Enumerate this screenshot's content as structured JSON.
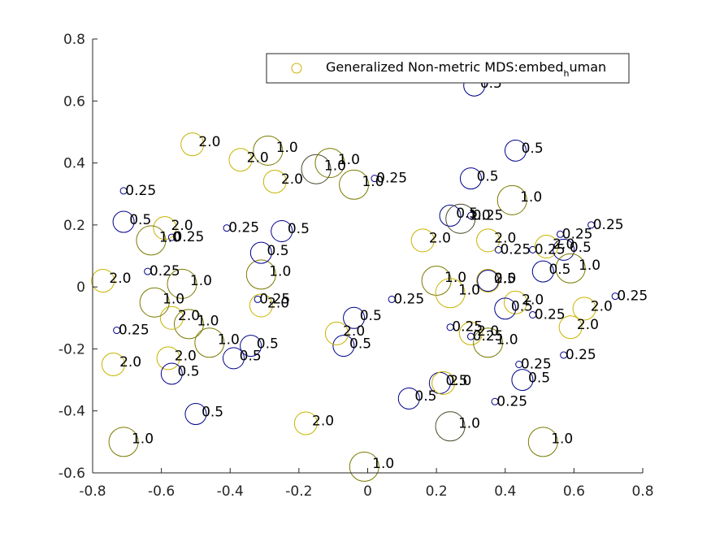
{
  "chart_data": {
    "type": "scatter",
    "xlim": [
      -0.8,
      0.8
    ],
    "ylim": [
      -0.6,
      0.8
    ],
    "xticks": [
      -0.8,
      -0.6,
      -0.4,
      -0.2,
      0,
      0.2,
      0.4,
      0.6,
      0.8
    ],
    "yticks": [
      -0.6,
      -0.4,
      -0.2,
      0,
      0.2,
      0.4,
      0.6,
      0.8
    ],
    "grid": false,
    "legend": {
      "placement": "top-right",
      "label_main": "Generalized Non-metric MDS:embed",
      "label_sub": "h",
      "label_tail": "uman"
    },
    "colors": {
      "navy": "#00008b",
      "olive": "#7a7a00",
      "dark": "#4a4a2a",
      "gold": "#c8b400"
    },
    "points": [
      {
        "x": 0.31,
        "y": 0.65,
        "label": "0.5",
        "r": 0.5,
        "c": "navy"
      },
      {
        "x": 0.43,
        "y": 0.44,
        "label": "0.5",
        "r": 0.5,
        "c": "navy"
      },
      {
        "x": 0.3,
        "y": 0.35,
        "label": "0.5",
        "r": 0.5,
        "c": "navy"
      },
      {
        "x": 0.42,
        "y": 0.28,
        "label": "1.0",
        "r": 1.0,
        "c": "olive"
      },
      {
        "x": 0.24,
        "y": 0.23,
        "label": "0.5",
        "r": 0.5,
        "c": "navy"
      },
      {
        "x": 0.27,
        "y": 0.22,
        "label": "1.0",
        "r": 1.0,
        "c": "dark"
      },
      {
        "x": 0.3,
        "y": 0.23,
        "label": "0.25",
        "r": 0.25,
        "c": "navy"
      },
      {
        "x": 0.16,
        "y": 0.15,
        "label": "2.0",
        "r": 2.0,
        "c": "gold"
      },
      {
        "x": 0.35,
        "y": 0.15,
        "label": "2.0",
        "r": 2.0,
        "c": "gold"
      },
      {
        "x": 0.38,
        "y": 0.12,
        "label": "0.25",
        "r": 0.25,
        "c": "navy"
      },
      {
        "x": 0.48,
        "y": 0.12,
        "label": "0.25",
        "r": 0.25,
        "c": "navy"
      },
      {
        "x": 0.52,
        "y": 0.13,
        "label": "2.0",
        "r": 2.0,
        "c": "gold"
      },
      {
        "x": 0.56,
        "y": 0.17,
        "label": "0.25",
        "r": 0.25,
        "c": "navy"
      },
      {
        "x": 0.57,
        "y": 0.12,
        "label": "0.5",
        "r": 0.5,
        "c": "navy"
      },
      {
        "x": 0.65,
        "y": 0.2,
        "label": "0.25",
        "r": 0.25,
        "c": "navy"
      },
      {
        "x": 0.59,
        "y": 0.06,
        "label": "1.0",
        "r": 1.0,
        "c": "olive"
      },
      {
        "x": 0.51,
        "y": 0.05,
        "label": "0.5",
        "r": 0.5,
        "c": "navy"
      },
      {
        "x": 0.35,
        "y": 0.02,
        "label": "2.0",
        "r": 2.0,
        "c": "gold"
      },
      {
        "x": 0.35,
        "y": 0.02,
        "label": "0.5",
        "r": 0.5,
        "c": "navy"
      },
      {
        "x": 0.2,
        "y": 0.02,
        "label": "1.0",
        "r": 1.0,
        "c": "olive"
      },
      {
        "x": 0.24,
        "y": -0.02,
        "label": "1.0",
        "r": 1.0,
        "c": "gold"
      },
      {
        "x": 0.07,
        "y": -0.04,
        "label": "0.25",
        "r": 0.25,
        "c": "navy"
      },
      {
        "x": 0.72,
        "y": -0.03,
        "label": "0.25",
        "r": 0.25,
        "c": "navy"
      },
      {
        "x": 0.43,
        "y": -0.05,
        "label": "2.0",
        "r": 2.0,
        "c": "gold"
      },
      {
        "x": 0.4,
        "y": -0.07,
        "label": "0.5",
        "r": 0.5,
        "c": "navy"
      },
      {
        "x": 0.48,
        "y": -0.09,
        "label": "0.25",
        "r": 0.25,
        "c": "navy"
      },
      {
        "x": 0.63,
        "y": -0.07,
        "label": "2.0",
        "r": 2.0,
        "c": "gold"
      },
      {
        "x": 0.59,
        "y": -0.13,
        "label": "2.0",
        "r": 2.0,
        "c": "gold"
      },
      {
        "x": 0.57,
        "y": -0.22,
        "label": "0.25",
        "r": 0.25,
        "c": "navy"
      },
      {
        "x": 0.24,
        "y": -0.13,
        "label": "0.25",
        "r": 0.25,
        "c": "navy"
      },
      {
        "x": 0.3,
        "y": -0.15,
        "label": "2.0",
        "r": 2.0,
        "c": "gold"
      },
      {
        "x": 0.3,
        "y": -0.16,
        "label": "0.25",
        "r": 0.25,
        "c": "navy"
      },
      {
        "x": 0.35,
        "y": -0.18,
        "label": "1.0",
        "r": 1.0,
        "c": "olive"
      },
      {
        "x": 0.44,
        "y": -0.25,
        "label": "0.25",
        "r": 0.25,
        "c": "navy"
      },
      {
        "x": 0.45,
        "y": -0.3,
        "label": "0.5",
        "r": 0.5,
        "c": "navy"
      },
      {
        "x": 0.21,
        "y": -0.31,
        "label": "0.5",
        "r": 0.5,
        "c": "navy"
      },
      {
        "x": 0.22,
        "y": -0.31,
        "label": "2.0",
        "r": 2.0,
        "c": "gold"
      },
      {
        "x": 0.12,
        "y": -0.36,
        "label": "0.5",
        "r": 0.5,
        "c": "navy"
      },
      {
        "x": 0.37,
        "y": -0.37,
        "label": "0.25",
        "r": 0.25,
        "c": "navy"
      },
      {
        "x": 0.24,
        "y": -0.45,
        "label": "1.0",
        "r": 1.0,
        "c": "dark"
      },
      {
        "x": 0.51,
        "y": -0.5,
        "label": "1.0",
        "r": 1.0,
        "c": "olive"
      },
      {
        "x": -0.01,
        "y": -0.58,
        "label": "1.0",
        "r": 1.0,
        "c": "olive"
      },
      {
        "x": -0.18,
        "y": -0.44,
        "label": "2.0",
        "r": 2.0,
        "c": "gold"
      },
      {
        "x": -0.5,
        "y": -0.41,
        "label": "0.5",
        "r": 0.5,
        "c": "navy"
      },
      {
        "x": -0.71,
        "y": -0.5,
        "label": "1.0",
        "r": 1.0,
        "c": "olive"
      },
      {
        "x": -0.07,
        "y": -0.19,
        "label": "0.5",
        "r": 0.5,
        "c": "navy"
      },
      {
        "x": -0.09,
        "y": -0.15,
        "label": "2.0",
        "r": 2.0,
        "c": "gold"
      },
      {
        "x": -0.04,
        "y": -0.1,
        "label": "0.5",
        "r": 0.5,
        "c": "navy"
      },
      {
        "x": -0.31,
        "y": -0.06,
        "label": "2.0",
        "r": 2.0,
        "c": "gold"
      },
      {
        "x": -0.32,
        "y": -0.04,
        "label": "0.25",
        "r": 0.25,
        "c": "navy"
      },
      {
        "x": -0.31,
        "y": 0.04,
        "label": "1.0",
        "r": 1.0,
        "c": "olive"
      },
      {
        "x": -0.31,
        "y": 0.11,
        "label": "0.5",
        "r": 0.5,
        "c": "navy"
      },
      {
        "x": -0.25,
        "y": 0.18,
        "label": "0.5",
        "r": 0.5,
        "c": "navy"
      },
      {
        "x": -0.41,
        "y": 0.19,
        "label": "0.25",
        "r": 0.25,
        "c": "navy"
      },
      {
        "x": -0.34,
        "y": -0.19,
        "label": "0.5",
        "r": 0.5,
        "c": "navy"
      },
      {
        "x": -0.39,
        "y": -0.23,
        "label": "0.5",
        "r": 0.5,
        "c": "navy"
      },
      {
        "x": -0.46,
        "y": -0.18,
        "label": "1.0",
        "r": 1.0,
        "c": "olive"
      },
      {
        "x": -0.52,
        "y": -0.12,
        "label": "1.0",
        "r": 1.0,
        "c": "olive"
      },
      {
        "x": -0.57,
        "y": -0.1,
        "label": "2.0",
        "r": 2.0,
        "c": "gold"
      },
      {
        "x": -0.62,
        "y": -0.05,
        "label": "1.0",
        "r": 1.0,
        "c": "olive"
      },
      {
        "x": -0.54,
        "y": 0.01,
        "label": "1.0",
        "r": 1.0,
        "c": "olive"
      },
      {
        "x": -0.64,
        "y": 0.05,
        "label": "0.25",
        "r": 0.25,
        "c": "navy"
      },
      {
        "x": -0.77,
        "y": 0.02,
        "label": "2.0",
        "r": 2.0,
        "c": "gold"
      },
      {
        "x": -0.73,
        "y": -0.14,
        "label": "0.25",
        "r": 0.25,
        "c": "navy"
      },
      {
        "x": -0.74,
        "y": -0.25,
        "label": "2.0",
        "r": 2.0,
        "c": "gold"
      },
      {
        "x": -0.58,
        "y": -0.23,
        "label": "2.0",
        "r": 2.0,
        "c": "gold"
      },
      {
        "x": -0.57,
        "y": -0.28,
        "label": "0.5",
        "r": 0.5,
        "c": "navy"
      },
      {
        "x": -0.71,
        "y": 0.31,
        "label": "0.25",
        "r": 0.25,
        "c": "navy"
      },
      {
        "x": -0.71,
        "y": 0.21,
        "label": "0.5",
        "r": 0.5,
        "c": "navy"
      },
      {
        "x": -0.59,
        "y": 0.19,
        "label": "2.0",
        "r": 2.0,
        "c": "gold"
      },
      {
        "x": -0.63,
        "y": 0.15,
        "label": "1.0",
        "r": 1.0,
        "c": "olive"
      },
      {
        "x": -0.57,
        "y": 0.16,
        "label": "0.25",
        "r": 0.25,
        "c": "navy"
      },
      {
        "x": -0.51,
        "y": 0.46,
        "label": "2.0",
        "r": 2.0,
        "c": "gold"
      },
      {
        "x": -0.37,
        "y": 0.41,
        "label": "2.0",
        "r": 2.0,
        "c": "gold"
      },
      {
        "x": -0.29,
        "y": 0.44,
        "label": "1.0",
        "r": 1.0,
        "c": "olive"
      },
      {
        "x": -0.27,
        "y": 0.34,
        "label": "2.0",
        "r": 2.0,
        "c": "gold"
      },
      {
        "x": -0.15,
        "y": 0.38,
        "label": "1.0",
        "r": 1.0,
        "c": "dark"
      },
      {
        "x": -0.11,
        "y": 0.4,
        "label": "1.0",
        "r": 1.0,
        "c": "olive"
      },
      {
        "x": -0.04,
        "y": 0.33,
        "label": "1.0",
        "r": 1.0,
        "c": "olive"
      },
      {
        "x": 0.02,
        "y": 0.35,
        "label": "0.25",
        "r": 0.25,
        "c": "navy"
      }
    ]
  }
}
